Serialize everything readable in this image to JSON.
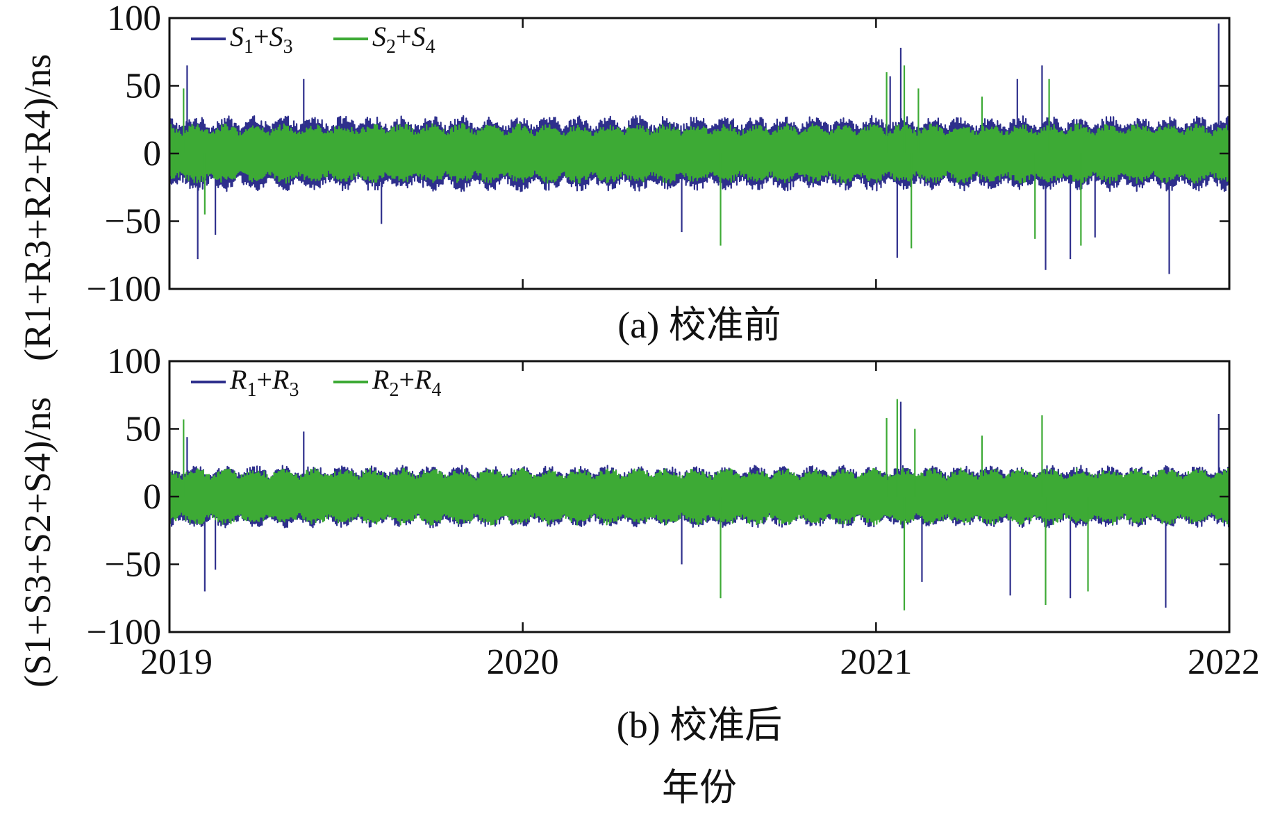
{
  "colors": {
    "series_1": "#2e2f8c",
    "series_2": "#3daa35",
    "axis": "#111111",
    "background": "#ffffff"
  },
  "figure": {
    "y_axis_title_top": "(R1+R3+R2+R4)/ns",
    "y_axis_title_bottom": "(S1+S3+S2+S4)/ns",
    "x_axis_title": "年份"
  },
  "chart_data": [
    {
      "type": "line",
      "caption": "(a) 校准前",
      "x_ticks": [
        "2019",
        "2020",
        "2021",
        "2022"
      ],
      "xlim": [
        2019,
        2022
      ],
      "ylim": [
        -100,
        100
      ],
      "y_ticks": [
        "100",
        "50",
        "0",
        "−50",
        "−100"
      ],
      "grid": false,
      "legend_position": "top-left",
      "series": [
        {
          "name": "S1+S3",
          "legend": {
            "main_1": "S",
            "sub_1": "1",
            "plus": "+",
            "main_2": "S",
            "sub_2": "3"
          },
          "envelope_amplitude": 28,
          "annual_cycles": 36,
          "spikes": [
            {
              "x": 2019.05,
              "y": 65
            },
            {
              "x": 2019.08,
              "y": -78
            },
            {
              "x": 2019.13,
              "y": -60
            },
            {
              "x": 2019.38,
              "y": 55
            },
            {
              "x": 2019.6,
              "y": -52
            },
            {
              "x": 2020.45,
              "y": -58
            },
            {
              "x": 2021.04,
              "y": 57
            },
            {
              "x": 2021.07,
              "y": 78
            },
            {
              "x": 2021.06,
              "y": -77
            },
            {
              "x": 2021.4,
              "y": 55
            },
            {
              "x": 2021.47,
              "y": 65
            },
            {
              "x": 2021.48,
              "y": -86
            },
            {
              "x": 2021.55,
              "y": -78
            },
            {
              "x": 2021.62,
              "y": -62
            },
            {
              "x": 2021.83,
              "y": -89
            },
            {
              "x": 2021.97,
              "y": 96
            }
          ]
        },
        {
          "name": "S2+S4",
          "legend": {
            "main_1": "S",
            "sub_1": "2",
            "plus": "+",
            "main_2": "S",
            "sub_2": "4"
          },
          "envelope_amplitude": 22,
          "annual_cycles": 36,
          "spikes": [
            {
              "x": 2019.04,
              "y": 48
            },
            {
              "x": 2019.1,
              "y": -45
            },
            {
              "x": 2020.56,
              "y": -68
            },
            {
              "x": 2021.03,
              "y": 60
            },
            {
              "x": 2021.08,
              "y": 65
            },
            {
              "x": 2021.1,
              "y": -70
            },
            {
              "x": 2021.12,
              "y": 48
            },
            {
              "x": 2021.3,
              "y": 42
            },
            {
              "x": 2021.45,
              "y": -63
            },
            {
              "x": 2021.49,
              "y": 55
            },
            {
              "x": 2021.58,
              "y": -68
            }
          ]
        }
      ]
    },
    {
      "type": "line",
      "caption": "(b) 校准后",
      "x_ticks": [
        "2019",
        "2020",
        "2021",
        "2022"
      ],
      "xlim": [
        2019,
        2022
      ],
      "ylim": [
        -100,
        100
      ],
      "y_ticks": [
        "100",
        "50",
        "0",
        "−50",
        "−100"
      ],
      "grid": false,
      "legend_position": "top-left",
      "series": [
        {
          "name": "R1+R3",
          "legend": {
            "main_1": "R",
            "sub_1": "1",
            "plus": "+",
            "main_2": "R",
            "sub_2": "3"
          },
          "envelope_amplitude": 23,
          "annual_cycles": 36,
          "spikes": [
            {
              "x": 2019.05,
              "y": 44
            },
            {
              "x": 2019.1,
              "y": -70
            },
            {
              "x": 2019.13,
              "y": -54
            },
            {
              "x": 2019.38,
              "y": 48
            },
            {
              "x": 2020.45,
              "y": -50
            },
            {
              "x": 2021.07,
              "y": 70
            },
            {
              "x": 2021.13,
              "y": -63
            },
            {
              "x": 2021.38,
              "y": -73
            },
            {
              "x": 2021.55,
              "y": -75
            },
            {
              "x": 2021.82,
              "y": -82
            },
            {
              "x": 2021.97,
              "y": 61
            }
          ]
        },
        {
          "name": "R2+R4",
          "legend": {
            "main_1": "R",
            "sub_1": "2",
            "plus": "+",
            "main_2": "R",
            "sub_2": "4"
          },
          "envelope_amplitude": 21,
          "annual_cycles": 36,
          "spikes": [
            {
              "x": 2019.04,
              "y": 57
            },
            {
              "x": 2020.56,
              "y": -75
            },
            {
              "x": 2021.03,
              "y": 58
            },
            {
              "x": 2021.06,
              "y": 72
            },
            {
              "x": 2021.08,
              "y": -84
            },
            {
              "x": 2021.11,
              "y": 50
            },
            {
              "x": 2021.3,
              "y": 45
            },
            {
              "x": 2021.47,
              "y": 60
            },
            {
              "x": 2021.48,
              "y": -80
            },
            {
              "x": 2021.6,
              "y": -70
            }
          ]
        }
      ]
    }
  ]
}
